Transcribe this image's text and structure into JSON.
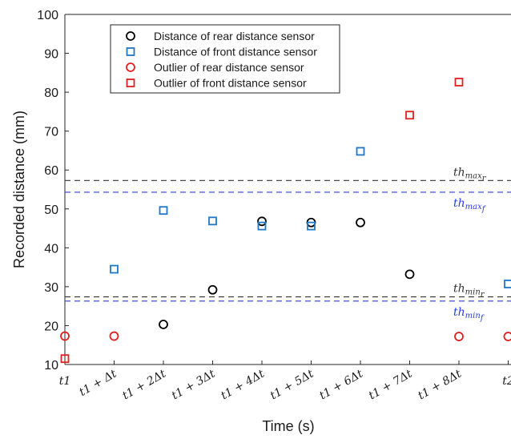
{
  "chart_data": {
    "type": "scatter",
    "xlabel": "Time (s)",
    "ylabel": "Recorded distance (mm)",
    "ylim": [
      10,
      100
    ],
    "yticks": [
      10,
      20,
      30,
      40,
      50,
      60,
      70,
      80,
      90,
      100
    ],
    "x_categories": [
      "t1",
      "t1 + Δt",
      "t1 + 2Δt",
      "t1 + 3Δt",
      "t1 + 4Δt",
      "t1 + 5Δt",
      "t1 + 6Δt",
      "t1 + 7Δt",
      "t1 + 8Δt",
      "t2"
    ],
    "legend_position": "top-left",
    "series": [
      {
        "name": "Distance of rear distance sensor",
        "marker": "circle",
        "color": "#000000",
        "points": [
          [
            2,
            20.3
          ],
          [
            3,
            29.2
          ],
          [
            4,
            46.8
          ],
          [
            5,
            46.5
          ],
          [
            6,
            46.5
          ],
          [
            7,
            33.2
          ]
        ]
      },
      {
        "name": "Distance of front distance sensor",
        "marker": "square",
        "color": "#1f77c8",
        "points": [
          [
            1,
            34.5
          ],
          [
            2,
            49.6
          ],
          [
            3,
            46.9
          ],
          [
            4,
            45.6
          ],
          [
            5,
            45.6
          ],
          [
            6,
            64.8
          ],
          [
            9,
            30.7
          ]
        ]
      },
      {
        "name": "Outlier of rear distance sensor",
        "marker": "circle",
        "color": "#e02020",
        "points": [
          [
            0,
            17.3
          ],
          [
            1,
            17.3
          ],
          [
            8,
            17.2
          ],
          [
            9,
            17.2
          ]
        ]
      },
      {
        "name": "Outlier of front distance sensor",
        "marker": "square",
        "color": "#e02020",
        "points": [
          [
            0,
            11.5
          ],
          [
            7,
            74.1
          ],
          [
            8,
            82.6
          ]
        ]
      }
    ],
    "thresholds": [
      {
        "label": "th",
        "sub": "max",
        "subsub": "r",
        "value": 57.3,
        "color": "#333333"
      },
      {
        "label": "th",
        "sub": "max",
        "subsub": "f",
        "value": 54.3,
        "color": "#2a3fe0"
      },
      {
        "label": "th",
        "sub": "min",
        "subsub": "r",
        "value": 27.4,
        "color": "#333333"
      },
      {
        "label": "th",
        "sub": "min",
        "subsub": "f",
        "value": 26.3,
        "color": "#2a3fe0"
      }
    ]
  }
}
